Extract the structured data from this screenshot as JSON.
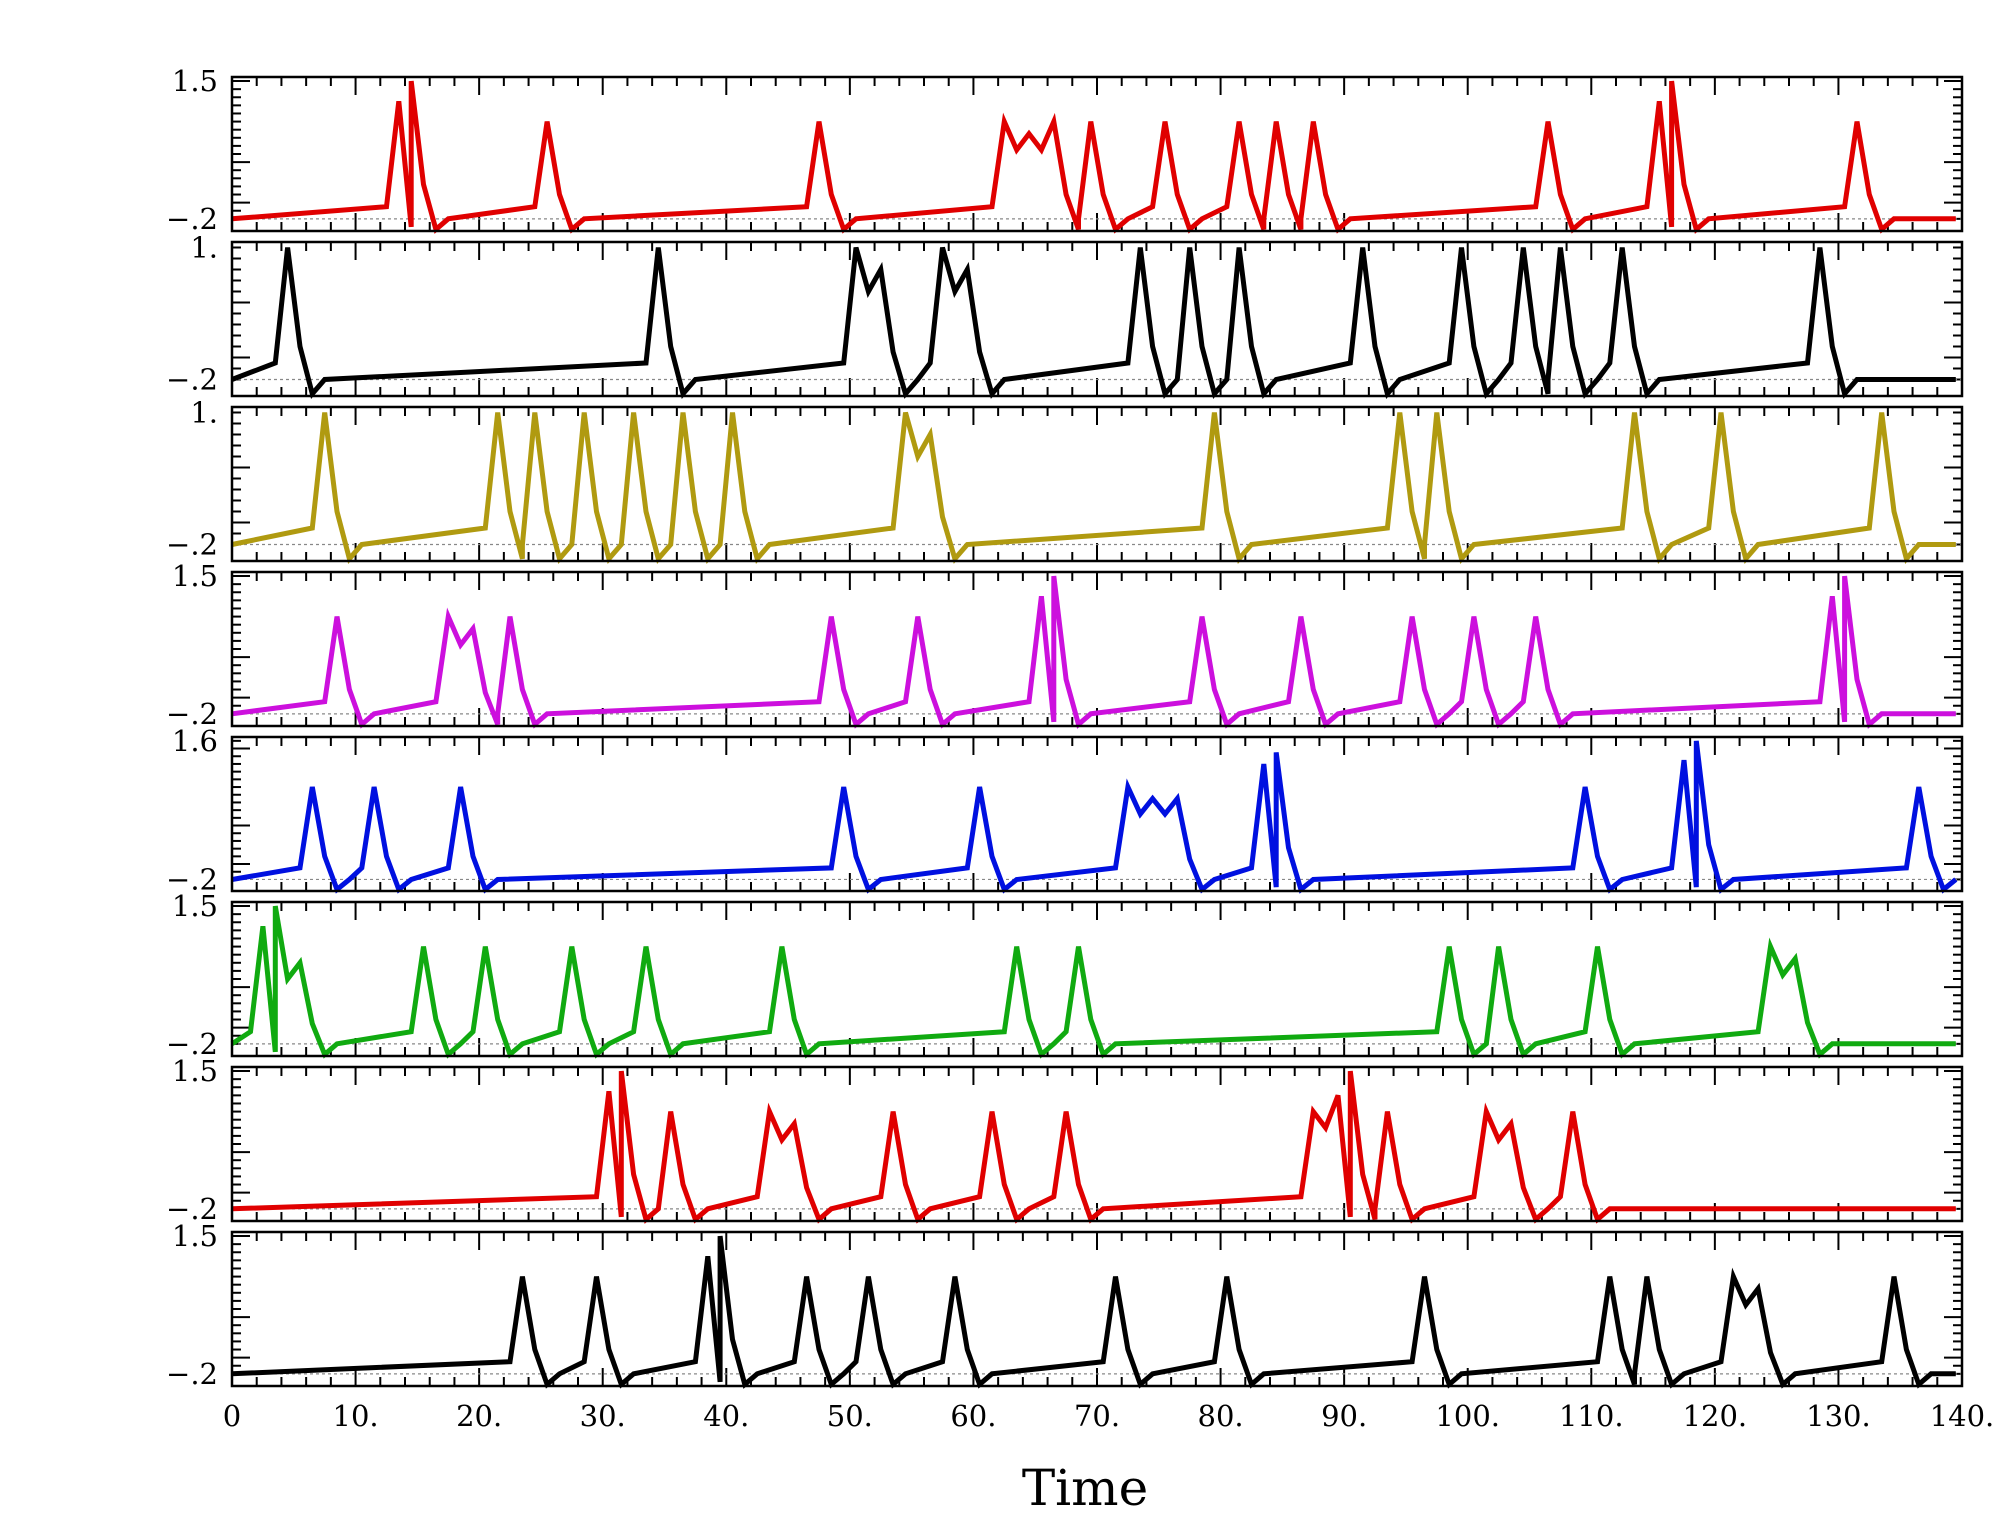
{
  "chart_data": {
    "type": "line",
    "xlabel": "Time",
    "xlim": [
      0,
      140
    ],
    "x_ticks": [
      0,
      10,
      20,
      30,
      40,
      50,
      60,
      70,
      80,
      90,
      100,
      110,
      120,
      130,
      140
    ],
    "x_tick_labels": [
      "0",
      "10.",
      "20.",
      "30.",
      "40.",
      "50.",
      "60.",
      "70.",
      "80.",
      "90.",
      "100.",
      "110.",
      "120.",
      "130.",
      "140."
    ],
    "baseline": -0.2,
    "grid": false,
    "legend": "none",
    "panels": [
      {
        "color": "#e00000",
        "ylim": [
          -0.35,
          1.55
        ],
        "ytick_labels": [
          {
            "value": 1.5,
            "text": "1.5"
          },
          {
            "value": -0.2,
            "text": "−.2"
          }
        ],
        "peaks": [
          [
            13.5,
            1.25
          ],
          [
            14.5,
            1.5
          ],
          [
            25.5,
            1.0
          ],
          [
            47.5,
            1.0
          ],
          [
            62.5,
            1.0
          ],
          [
            64.5,
            0.85
          ],
          [
            66.5,
            1.0
          ],
          [
            69.5,
            1.0
          ],
          [
            75.5,
            1.0
          ],
          [
            81.5,
            1.0
          ],
          [
            84.5,
            1.0
          ],
          [
            87.5,
            1.0
          ],
          [
            106.5,
            1.0
          ],
          [
            115.5,
            1.25
          ],
          [
            116.5,
            1.5
          ],
          [
            131.5,
            1.0
          ]
        ]
      },
      {
        "color": "#000000",
        "ylim": [
          -0.35,
          1.05
        ],
        "ytick_labels": [
          {
            "value": 1.0,
            "text": "1."
          },
          {
            "value": -0.2,
            "text": "−.2"
          }
        ],
        "peaks": [
          [
            4.5,
            1.0
          ],
          [
            34.5,
            1.0
          ],
          [
            50.5,
            1.0
          ],
          [
            52.5,
            0.8
          ],
          [
            57.5,
            1.0
          ],
          [
            59.5,
            0.8
          ],
          [
            73.5,
            1.0
          ],
          [
            77.5,
            1.0
          ],
          [
            81.5,
            1.0
          ],
          [
            91.5,
            1.0
          ],
          [
            99.5,
            1.0
          ],
          [
            104.5,
            1.0
          ],
          [
            107.5,
            1.0
          ],
          [
            112.5,
            1.0
          ],
          [
            128.5,
            1.0
          ]
        ]
      },
      {
        "color": "#b09a10",
        "ylim": [
          -0.35,
          1.05
        ],
        "ytick_labels": [
          {
            "value": 1.0,
            "text": "1."
          },
          {
            "value": -0.2,
            "text": "−.2"
          }
        ],
        "peaks": [
          [
            7.5,
            1.0
          ],
          [
            21.5,
            1.0
          ],
          [
            24.5,
            1.0
          ],
          [
            28.5,
            1.0
          ],
          [
            32.5,
            1.0
          ],
          [
            36.5,
            1.0
          ],
          [
            40.5,
            1.0
          ],
          [
            54.5,
            1.0
          ],
          [
            56.5,
            0.8
          ],
          [
            79.5,
            1.0
          ],
          [
            94.5,
            1.0
          ],
          [
            97.5,
            1.0
          ],
          [
            113.5,
            1.0
          ],
          [
            120.5,
            1.0
          ],
          [
            133.5,
            1.0
          ]
        ]
      },
      {
        "color": "#cc10dd",
        "ylim": [
          -0.35,
          1.55
        ],
        "ytick_labels": [
          {
            "value": 1.5,
            "text": "1.5"
          },
          {
            "value": -0.2,
            "text": "−.2"
          }
        ],
        "peaks": [
          [
            8.5,
            1.0
          ],
          [
            17.5,
            1.0
          ],
          [
            19.5,
            0.85
          ],
          [
            22.5,
            1.0
          ],
          [
            48.5,
            1.0
          ],
          [
            55.5,
            1.0
          ],
          [
            65.5,
            1.25
          ],
          [
            66.5,
            1.5
          ],
          [
            78.5,
            1.0
          ],
          [
            86.5,
            1.0
          ],
          [
            95.5,
            1.0
          ],
          [
            100.5,
            1.0
          ],
          [
            105.5,
            1.0
          ],
          [
            129.5,
            1.25
          ],
          [
            130.5,
            1.5
          ]
        ]
      },
      {
        "color": "#0010e0",
        "ylim": [
          -0.35,
          1.65
        ],
        "ytick_labels": [
          {
            "value": 1.6,
            "text": "1.6"
          },
          {
            "value": -0.2,
            "text": "−.2"
          }
        ],
        "peaks": [
          [
            6.5,
            1.0
          ],
          [
            11.5,
            1.0
          ],
          [
            18.5,
            1.0
          ],
          [
            49.5,
            1.0
          ],
          [
            60.5,
            1.0
          ],
          [
            72.5,
            1.0
          ],
          [
            74.5,
            0.85
          ],
          [
            76.5,
            0.85
          ],
          [
            83.5,
            1.3
          ],
          [
            84.5,
            1.45
          ],
          [
            109.5,
            1.0
          ],
          [
            117.5,
            1.35
          ],
          [
            118.5,
            1.6
          ],
          [
            136.5,
            1.0
          ]
        ]
      },
      {
        "color": "#10aa10",
        "ylim": [
          -0.35,
          1.55
        ],
        "ytick_labels": [
          {
            "value": 1.5,
            "text": "1.5"
          },
          {
            "value": -0.2,
            "text": "−.2"
          }
        ],
        "peaks": [
          [
            2.5,
            1.25
          ],
          [
            3.5,
            1.5
          ],
          [
            5.5,
            0.8
          ],
          [
            15.5,
            1.0
          ],
          [
            20.5,
            1.0
          ],
          [
            27.5,
            1.0
          ],
          [
            33.5,
            1.0
          ],
          [
            44.5,
            1.0
          ],
          [
            63.5,
            1.0
          ],
          [
            68.5,
            1.0
          ],
          [
            98.5,
            1.0
          ],
          [
            102.5,
            1.0
          ],
          [
            110.5,
            1.0
          ],
          [
            124.5,
            1.0
          ],
          [
            126.5,
            0.85
          ]
        ]
      },
      {
        "color": "#e00000",
        "ylim": [
          -0.35,
          1.55
        ],
        "ytick_labels": [
          {
            "value": 1.5,
            "text": "1.5"
          },
          {
            "value": -0.2,
            "text": "−.2"
          }
        ],
        "peaks": [
          [
            30.5,
            1.25
          ],
          [
            31.5,
            1.5
          ],
          [
            35.5,
            1.0
          ],
          [
            43.5,
            1.0
          ],
          [
            45.5,
            0.85
          ],
          [
            53.5,
            1.0
          ],
          [
            61.5,
            1.0
          ],
          [
            67.5,
            1.0
          ],
          [
            87.5,
            1.0
          ],
          [
            89.5,
            1.2
          ],
          [
            90.5,
            1.5
          ],
          [
            93.5,
            1.0
          ],
          [
            101.5,
            1.0
          ],
          [
            103.5,
            0.85
          ],
          [
            108.5,
            1.0
          ]
        ]
      },
      {
        "color": "#000000",
        "ylim": [
          -0.35,
          1.55
        ],
        "ytick_labels": [
          {
            "value": 1.5,
            "text": "1.5"
          },
          {
            "value": -0.2,
            "text": "−.2"
          }
        ],
        "peaks": [
          [
            23.5,
            1.0
          ],
          [
            29.5,
            1.0
          ],
          [
            38.5,
            1.25
          ],
          [
            39.5,
            1.5
          ],
          [
            46.5,
            1.0
          ],
          [
            51.5,
            1.0
          ],
          [
            58.5,
            1.0
          ],
          [
            71.5,
            1.0
          ],
          [
            80.5,
            1.0
          ],
          [
            96.5,
            1.0
          ],
          [
            111.5,
            1.0
          ],
          [
            114.5,
            1.0
          ],
          [
            121.5,
            1.0
          ],
          [
            123.5,
            0.85
          ],
          [
            134.5,
            1.0
          ]
        ]
      }
    ]
  }
}
